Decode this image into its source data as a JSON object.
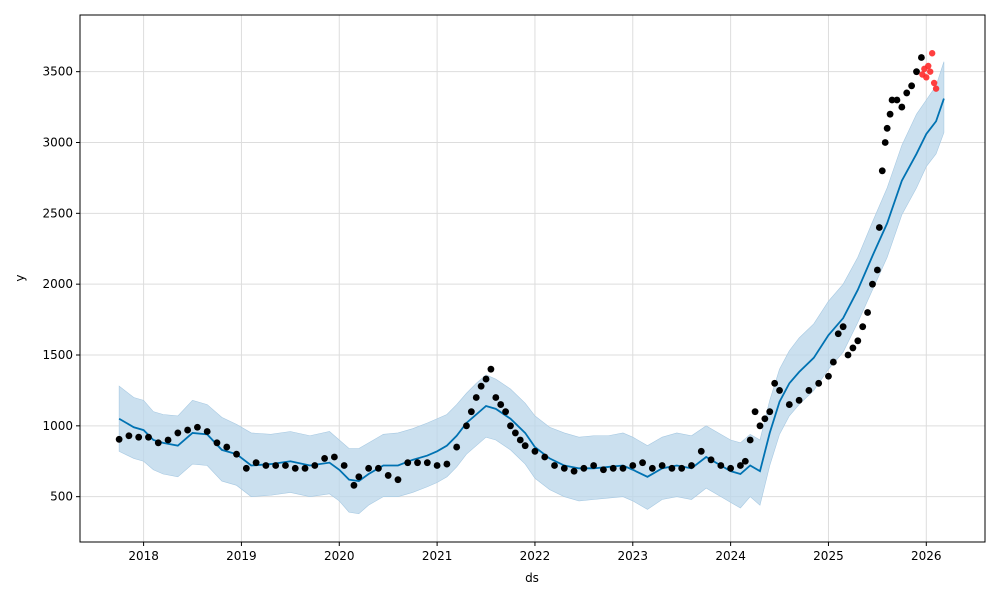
{
  "chart_data": {
    "type": "scatter",
    "xlabel": "ds",
    "ylabel": "y",
    "xlim": [
      2017.35,
      2026.6
    ],
    "ylim": [
      180,
      3900
    ],
    "grid": true,
    "x_ticks": [
      {
        "value": 2018,
        "label": "2018"
      },
      {
        "value": 2019,
        "label": "2019"
      },
      {
        "value": 2020,
        "label": "2020"
      },
      {
        "value": 2021,
        "label": "2021"
      },
      {
        "value": 2022,
        "label": "2022"
      },
      {
        "value": 2023,
        "label": "2023"
      },
      {
        "value": 2024,
        "label": "2024"
      },
      {
        "value": 2025,
        "label": "2025"
      },
      {
        "value": 2026,
        "label": "2026"
      }
    ],
    "y_ticks": [
      {
        "value": 500,
        "label": "500"
      },
      {
        "value": 1000,
        "label": "1000"
      },
      {
        "value": 1500,
        "label": "1500"
      },
      {
        "value": 2000,
        "label": "2000"
      },
      {
        "value": 2500,
        "label": "2500"
      },
      {
        "value": 3000,
        "label": "3000"
      },
      {
        "value": 3500,
        "label": "3500"
      }
    ],
    "colors": {
      "forecast_line": "#0072B2",
      "uncertainty_band": "#b9d6ea",
      "observed": "#000000",
      "holdout": "#ff2a2a",
      "grid": "#dddddd"
    },
    "forecast": {
      "x": [
        2017.75,
        2017.9,
        2018.0,
        2018.1,
        2018.2,
        2018.35,
        2018.5,
        2018.65,
        2018.8,
        2018.95,
        2019.1,
        2019.3,
        2019.5,
        2019.7,
        2019.9,
        2020.0,
        2020.1,
        2020.2,
        2020.3,
        2020.45,
        2020.6,
        2020.75,
        2020.9,
        2021.0,
        2021.1,
        2021.2,
        2021.3,
        2021.4,
        2021.5,
        2021.6,
        2021.75,
        2021.9,
        2022.0,
        2022.15,
        2022.3,
        2022.45,
        2022.6,
        2022.75,
        2022.9,
        2023.0,
        2023.15,
        2023.3,
        2023.45,
        2023.6,
        2023.75,
        2023.9,
        2024.0,
        2024.1,
        2024.2,
        2024.3,
        2024.4,
        2024.5,
        2024.6,
        2024.7,
        2024.85,
        2025.0,
        2025.15,
        2025.3,
        2025.45,
        2025.6,
        2025.75,
        2025.9,
        2026.0,
        2026.1,
        2026.18
      ],
      "yhat": [
        1050,
        990,
        970,
        900,
        880,
        860,
        950,
        940,
        830,
        800,
        720,
        730,
        750,
        720,
        740,
        690,
        620,
        610,
        660,
        720,
        720,
        760,
        790,
        820,
        860,
        930,
        1020,
        1080,
        1140,
        1120,
        1050,
        950,
        850,
        770,
        720,
        700,
        700,
        710,
        720,
        690,
        640,
        700,
        720,
        700,
        780,
        720,
        680,
        660,
        720,
        680,
        950,
        1170,
        1300,
        1380,
        1480,
        1640,
        1760,
        1960,
        2200,
        2430,
        2730,
        2920,
        3060,
        3150,
        3310
      ],
      "upper": [
        1280,
        1200,
        1180,
        1100,
        1080,
        1070,
        1180,
        1150,
        1060,
        1010,
        950,
        940,
        960,
        930,
        960,
        900,
        840,
        840,
        880,
        940,
        950,
        980,
        1020,
        1050,
        1080,
        1150,
        1230,
        1300,
        1360,
        1330,
        1260,
        1160,
        1070,
        990,
        950,
        920,
        930,
        930,
        950,
        920,
        860,
        920,
        950,
        930,
        1000,
        940,
        900,
        880,
        940,
        900,
        1180,
        1400,
        1530,
        1620,
        1720,
        1880,
        2000,
        2190,
        2440,
        2680,
        2980,
        3200,
        3300,
        3400,
        3570
      ],
      "lower": [
        820,
        770,
        750,
        690,
        660,
        640,
        730,
        720,
        610,
        580,
        500,
        510,
        530,
        500,
        520,
        470,
        390,
        380,
        440,
        500,
        500,
        530,
        570,
        600,
        640,
        710,
        800,
        860,
        920,
        900,
        830,
        730,
        630,
        550,
        500,
        470,
        480,
        490,
        500,
        470,
        410,
        480,
        500,
        480,
        560,
        500,
        460,
        420,
        500,
        440,
        720,
        940,
        1070,
        1150,
        1250,
        1400,
        1520,
        1730,
        1960,
        2190,
        2490,
        2680,
        2830,
        2920,
        3070
      ]
    },
    "observed": {
      "x": [
        2017.75,
        2017.85,
        2017.95,
        2018.05,
        2018.15,
        2018.25,
        2018.35,
        2018.45,
        2018.55,
        2018.65,
        2018.75,
        2018.85,
        2018.95,
        2019.05,
        2019.15,
        2019.25,
        2019.35,
        2019.45,
        2019.55,
        2019.65,
        2019.75,
        2019.85,
        2019.95,
        2020.05,
        2020.15,
        2020.2,
        2020.3,
        2020.4,
        2020.5,
        2020.6,
        2020.7,
        2020.8,
        2020.9,
        2021.0,
        2021.1,
        2021.2,
        2021.3,
        2021.35,
        2021.4,
        2021.45,
        2021.5,
        2021.55,
        2021.6,
        2021.65,
        2021.7,
        2021.75,
        2021.8,
        2021.85,
        2021.9,
        2022.0,
        2022.1,
        2022.2,
        2022.3,
        2022.4,
        2022.5,
        2022.6,
        2022.7,
        2022.8,
        2022.9,
        2023.0,
        2023.1,
        2023.2,
        2023.3,
        2023.4,
        2023.5,
        2023.6,
        2023.7,
        2023.8,
        2023.9,
        2024.0,
        2024.1,
        2024.15,
        2024.2,
        2024.25,
        2024.3,
        2024.35,
        2024.4,
        2024.45,
        2024.5,
        2024.6,
        2024.7,
        2024.8,
        2024.9,
        2025.0,
        2025.05,
        2025.1,
        2025.15,
        2025.2,
        2025.25,
        2025.3,
        2025.35,
        2025.4,
        2025.45,
        2025.5,
        2025.52,
        2025.55,
        2025.58,
        2025.6,
        2025.63,
        2025.65,
        2025.7,
        2025.75,
        2025.8,
        2025.85,
        2025.9,
        2025.95
      ],
      "y": [
        905,
        930,
        920,
        920,
        880,
        900,
        950,
        970,
        990,
        960,
        880,
        850,
        800,
        700,
        740,
        720,
        720,
        720,
        700,
        700,
        720,
        770,
        780,
        720,
        580,
        640,
        700,
        700,
        650,
        620,
        740,
        740,
        740,
        720,
        730,
        850,
        1000,
        1100,
        1200,
        1280,
        1330,
        1400,
        1200,
        1150,
        1100,
        1000,
        950,
        900,
        860,
        820,
        780,
        720,
        700,
        680,
        700,
        720,
        690,
        700,
        700,
        720,
        740,
        700,
        720,
        700,
        700,
        720,
        820,
        760,
        720,
        700,
        720,
        750,
        900,
        1100,
        1000,
        1050,
        1100,
        1300,
        1250,
        1150,
        1180,
        1250,
        1300,
        1350,
        1450,
        1650,
        1700,
        1500,
        1550,
        1600,
        1700,
        1800,
        2000,
        2100,
        2400,
        2800,
        3000,
        3100,
        3200,
        3300,
        3300,
        3250,
        3350,
        3400,
        3500,
        3600
      ]
    },
    "holdout": {
      "x": [
        2025.96,
        2025.98,
        2026.0,
        2026.02,
        2026.04,
        2026.06,
        2026.08,
        2026.1
      ],
      "y": [
        3480,
        3520,
        3460,
        3540,
        3500,
        3630,
        3420,
        3380
      ]
    }
  }
}
